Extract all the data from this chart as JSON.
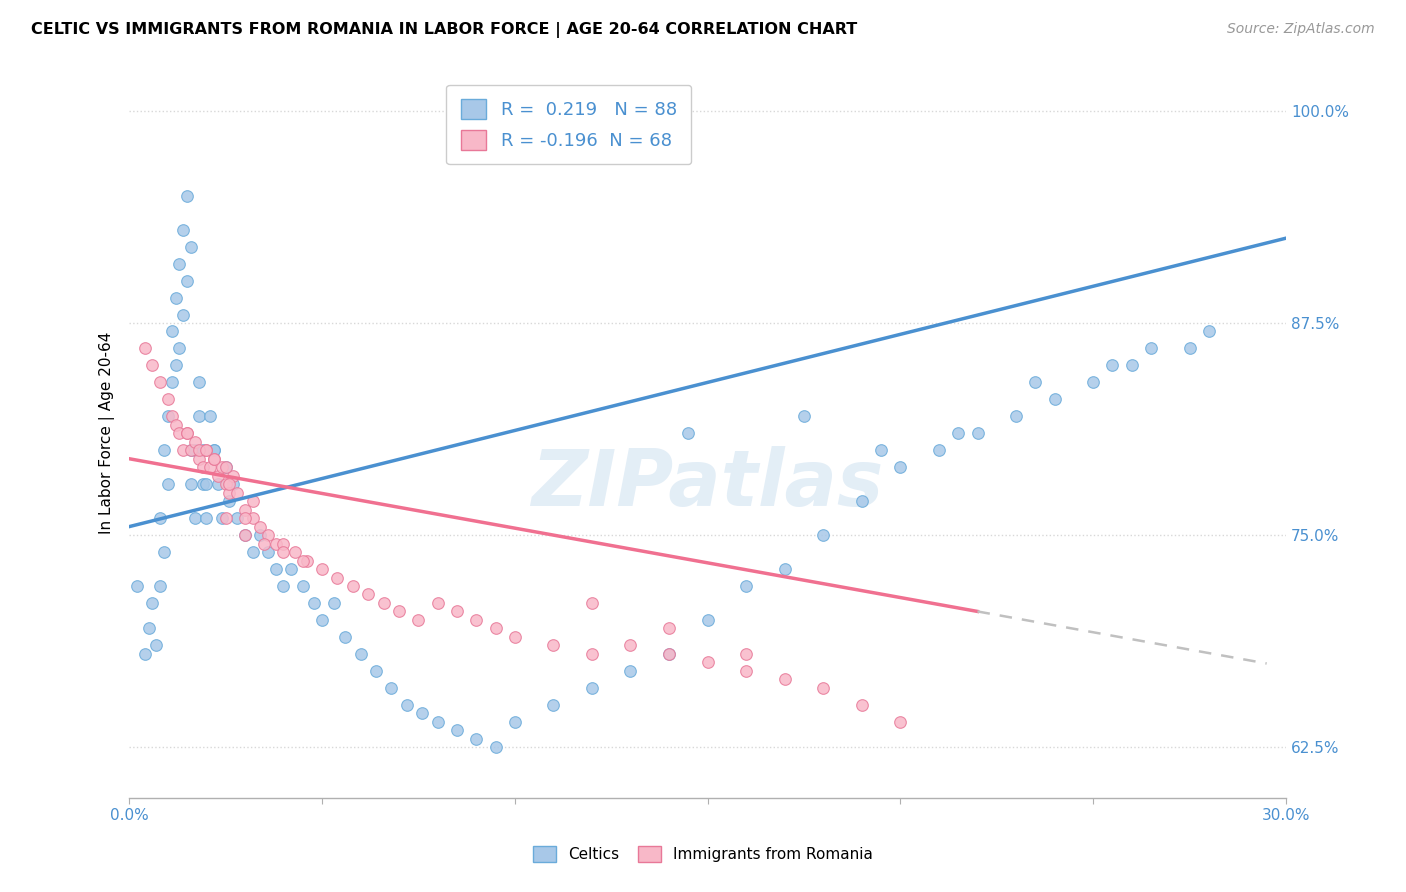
{
  "title": "CELTIC VS IMMIGRANTS FROM ROMANIA IN LABOR FORCE | AGE 20-64 CORRELATION CHART",
  "source": "Source: ZipAtlas.com",
  "ylabel": "In Labor Force | Age 20-64",
  "xlim": [
    0.0,
    0.3
  ],
  "ylim": [
    0.595,
    1.025
  ],
  "yticks": [
    0.625,
    0.75,
    0.875,
    1.0
  ],
  "ytick_labels": [
    "62.5%",
    "75.0%",
    "87.5%",
    "100.0%"
  ],
  "xticks": [
    0.0,
    0.05,
    0.1,
    0.15,
    0.2,
    0.25,
    0.3
  ],
  "xtick_labels": [
    "0.0%",
    "",
    "",
    "",
    "",
    "",
    "30.0%"
  ],
  "celtics_color": "#a8c8e8",
  "romania_color": "#f8b8c8",
  "celtics_edge": "#6aabda",
  "romania_edge": "#e87898",
  "trendline_celtics_color": "#4a90d0",
  "trendline_romania_color": "#f07090",
  "trendline_dashed_color": "#c0c0c0",
  "R_celtics": 0.219,
  "N_celtics": 88,
  "R_romania": -0.196,
  "N_romania": 68,
  "watermark_text": "ZIPatlas",
  "celtics_x": [
    0.002,
    0.004,
    0.005,
    0.006,
    0.007,
    0.008,
    0.008,
    0.009,
    0.009,
    0.01,
    0.01,
    0.011,
    0.011,
    0.012,
    0.012,
    0.013,
    0.013,
    0.014,
    0.014,
    0.015,
    0.015,
    0.016,
    0.016,
    0.017,
    0.017,
    0.018,
    0.018,
    0.019,
    0.019,
    0.02,
    0.02,
    0.021,
    0.022,
    0.023,
    0.024,
    0.025,
    0.026,
    0.027,
    0.028,
    0.03,
    0.032,
    0.034,
    0.036,
    0.038,
    0.04,
    0.042,
    0.045,
    0.048,
    0.05,
    0.053,
    0.056,
    0.06,
    0.064,
    0.068,
    0.072,
    0.076,
    0.08,
    0.085,
    0.09,
    0.095,
    0.1,
    0.11,
    0.12,
    0.13,
    0.14,
    0.15,
    0.16,
    0.17,
    0.18,
    0.19,
    0.2,
    0.21,
    0.22,
    0.23,
    0.24,
    0.25,
    0.26,
    0.265,
    0.145,
    0.175,
    0.195,
    0.215,
    0.235,
    0.255,
    0.275,
    0.28,
    0.016,
    0.022
  ],
  "celtics_y": [
    0.72,
    0.68,
    0.695,
    0.71,
    0.685,
    0.72,
    0.76,
    0.74,
    0.8,
    0.78,
    0.82,
    0.84,
    0.87,
    0.85,
    0.89,
    0.86,
    0.91,
    0.88,
    0.93,
    0.9,
    0.95,
    0.92,
    0.78,
    0.8,
    0.76,
    0.82,
    0.84,
    0.78,
    0.8,
    0.76,
    0.78,
    0.82,
    0.8,
    0.78,
    0.76,
    0.79,
    0.77,
    0.78,
    0.76,
    0.75,
    0.74,
    0.75,
    0.74,
    0.73,
    0.72,
    0.73,
    0.72,
    0.71,
    0.7,
    0.71,
    0.69,
    0.68,
    0.67,
    0.66,
    0.65,
    0.645,
    0.64,
    0.635,
    0.63,
    0.625,
    0.64,
    0.65,
    0.66,
    0.67,
    0.68,
    0.7,
    0.72,
    0.73,
    0.75,
    0.77,
    0.79,
    0.8,
    0.81,
    0.82,
    0.83,
    0.84,
    0.85,
    0.86,
    0.81,
    0.82,
    0.8,
    0.81,
    0.84,
    0.85,
    0.86,
    0.87,
    0.8,
    0.8
  ],
  "romania_x": [
    0.004,
    0.006,
    0.008,
    0.01,
    0.011,
    0.012,
    0.013,
    0.014,
    0.015,
    0.016,
    0.017,
    0.018,
    0.019,
    0.02,
    0.021,
    0.022,
    0.023,
    0.024,
    0.025,
    0.026,
    0.027,
    0.028,
    0.03,
    0.032,
    0.034,
    0.036,
    0.038,
    0.04,
    0.043,
    0.046,
    0.05,
    0.054,
    0.058,
    0.062,
    0.066,
    0.07,
    0.075,
    0.08,
    0.085,
    0.09,
    0.095,
    0.1,
    0.11,
    0.12,
    0.13,
    0.14,
    0.15,
    0.16,
    0.17,
    0.18,
    0.19,
    0.2,
    0.12,
    0.14,
    0.16,
    0.025,
    0.03,
    0.035,
    0.04,
    0.045,
    0.018,
    0.022,
    0.026,
    0.032,
    0.015,
    0.02,
    0.025,
    0.03
  ],
  "romania_y": [
    0.86,
    0.85,
    0.84,
    0.83,
    0.82,
    0.815,
    0.81,
    0.8,
    0.81,
    0.8,
    0.805,
    0.795,
    0.79,
    0.8,
    0.79,
    0.795,
    0.785,
    0.79,
    0.78,
    0.775,
    0.785,
    0.775,
    0.765,
    0.76,
    0.755,
    0.75,
    0.745,
    0.745,
    0.74,
    0.735,
    0.73,
    0.725,
    0.72,
    0.715,
    0.71,
    0.705,
    0.7,
    0.71,
    0.705,
    0.7,
    0.695,
    0.69,
    0.685,
    0.68,
    0.685,
    0.68,
    0.675,
    0.67,
    0.665,
    0.66,
    0.65,
    0.64,
    0.71,
    0.695,
    0.68,
    0.76,
    0.75,
    0.745,
    0.74,
    0.735,
    0.8,
    0.795,
    0.78,
    0.77,
    0.81,
    0.8,
    0.79,
    0.76
  ]
}
